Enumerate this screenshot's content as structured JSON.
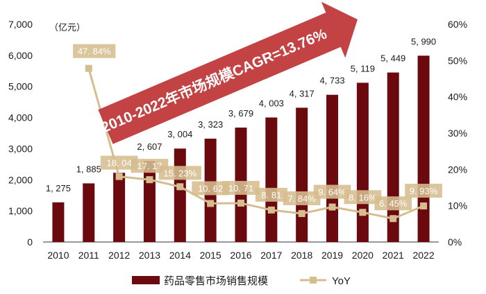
{
  "chart_data": {
    "type": "bar+line",
    "title": "2010-2022年市场规模CAGR=13.76%",
    "categories": [
      "2010",
      "2011",
      "2012",
      "2013",
      "2014",
      "2015",
      "2016",
      "2017",
      "2018",
      "2019",
      "2020",
      "2021",
      "2022"
    ],
    "series": [
      {
        "name": "药品零售市场销售规模",
        "type": "bar",
        "axis": "left",
        "values": [
          1275,
          1885,
          2225,
          2607,
          3004,
          3323,
          3679,
          4003,
          4317,
          4733,
          5119,
          5449,
          5990
        ],
        "labels": [
          "1, 275",
          "1, 885",
          "",
          "2, 607",
          "3, 004",
          "3, 323",
          "3, 679",
          "4, 003",
          "4, 317",
          "4, 733",
          "5, 119",
          "5, 449",
          "5, 990"
        ]
      },
      {
        "name": "YoY",
        "type": "line",
        "axis": "right",
        "values": [
          null,
          47.84,
          18.04,
          17.17,
          15.23,
          10.62,
          10.71,
          8.81,
          7.84,
          9.64,
          8.16,
          6.45,
          9.93
        ],
        "labels": [
          "",
          "47. 84%",
          "18. 04",
          "17. 17",
          "15. 23%",
          "10. 62",
          "10. 71",
          "8. 81",
          "7. 84%",
          "9. 64%",
          "8. 16%",
          "6. 45%",
          "9. 93%"
        ]
      }
    ],
    "left_axis": {
      "unit": "（亿元）",
      "ylim": [
        0,
        7000
      ],
      "ticks": [
        "0",
        "1,000",
        "2,000",
        "3,000",
        "4,000",
        "5,000",
        "6,000",
        "7,000"
      ],
      "tick_values": [
        0,
        1000,
        2000,
        3000,
        4000,
        5000,
        6000,
        7000
      ]
    },
    "right_axis": {
      "ylim": [
        0,
        60
      ],
      "ticks": [
        "0%",
        "10%",
        "20%",
        "30%",
        "40%",
        "50%",
        "60%"
      ],
      "tick_values": [
        0,
        10,
        20,
        30,
        40,
        50,
        60
      ]
    },
    "legend": {
      "placement": "bottom",
      "items": [
        "药品零售市场销售规模",
        "YoY"
      ]
    },
    "colors": {
      "bar": "#6b0a0e",
      "line": "#d6bd90",
      "label_box": "#d6bd90",
      "arrow": "#c0393b"
    }
  }
}
